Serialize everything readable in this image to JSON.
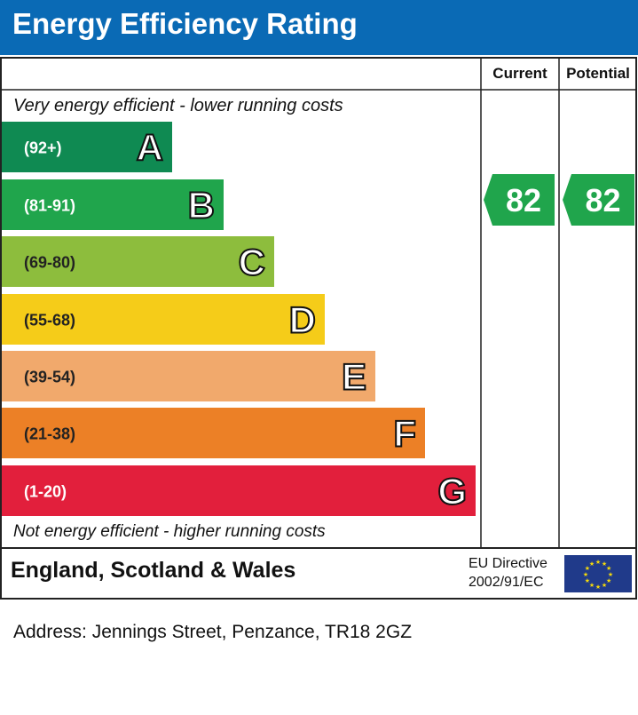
{
  "header": {
    "title": "Energy Efficiency Rating"
  },
  "columns": {
    "current": "Current",
    "potential": "Potential"
  },
  "top_text": "Very energy efficient - lower running costs",
  "bottom_text": "Not energy efficient - higher running costs",
  "footer": {
    "country": "England, Scotland & Wales",
    "eu_line1": "EU Directive",
    "eu_line2": "2002/91/EC"
  },
  "address": "Address: Jennings Street, Penzance, TR18 2GZ",
  "chart_data": {
    "type": "bar",
    "categories": [
      "A",
      "B",
      "C",
      "D",
      "E",
      "F",
      "G"
    ],
    "ranges": [
      "(92+)",
      "(81-91)",
      "(69-80)",
      "(55-68)",
      "(39-54)",
      "(21-38)",
      "(1-20)"
    ],
    "colors": [
      "#0f8a52",
      "#20a54c",
      "#8dbd3d",
      "#f5cc19",
      "#f1a96c",
      "#ec8026",
      "#e21f3c"
    ],
    "current": {
      "value": 82,
      "band": "B",
      "color": "#20a54c"
    },
    "potential": {
      "value": 82,
      "band": "B",
      "color": "#20a54c"
    }
  }
}
